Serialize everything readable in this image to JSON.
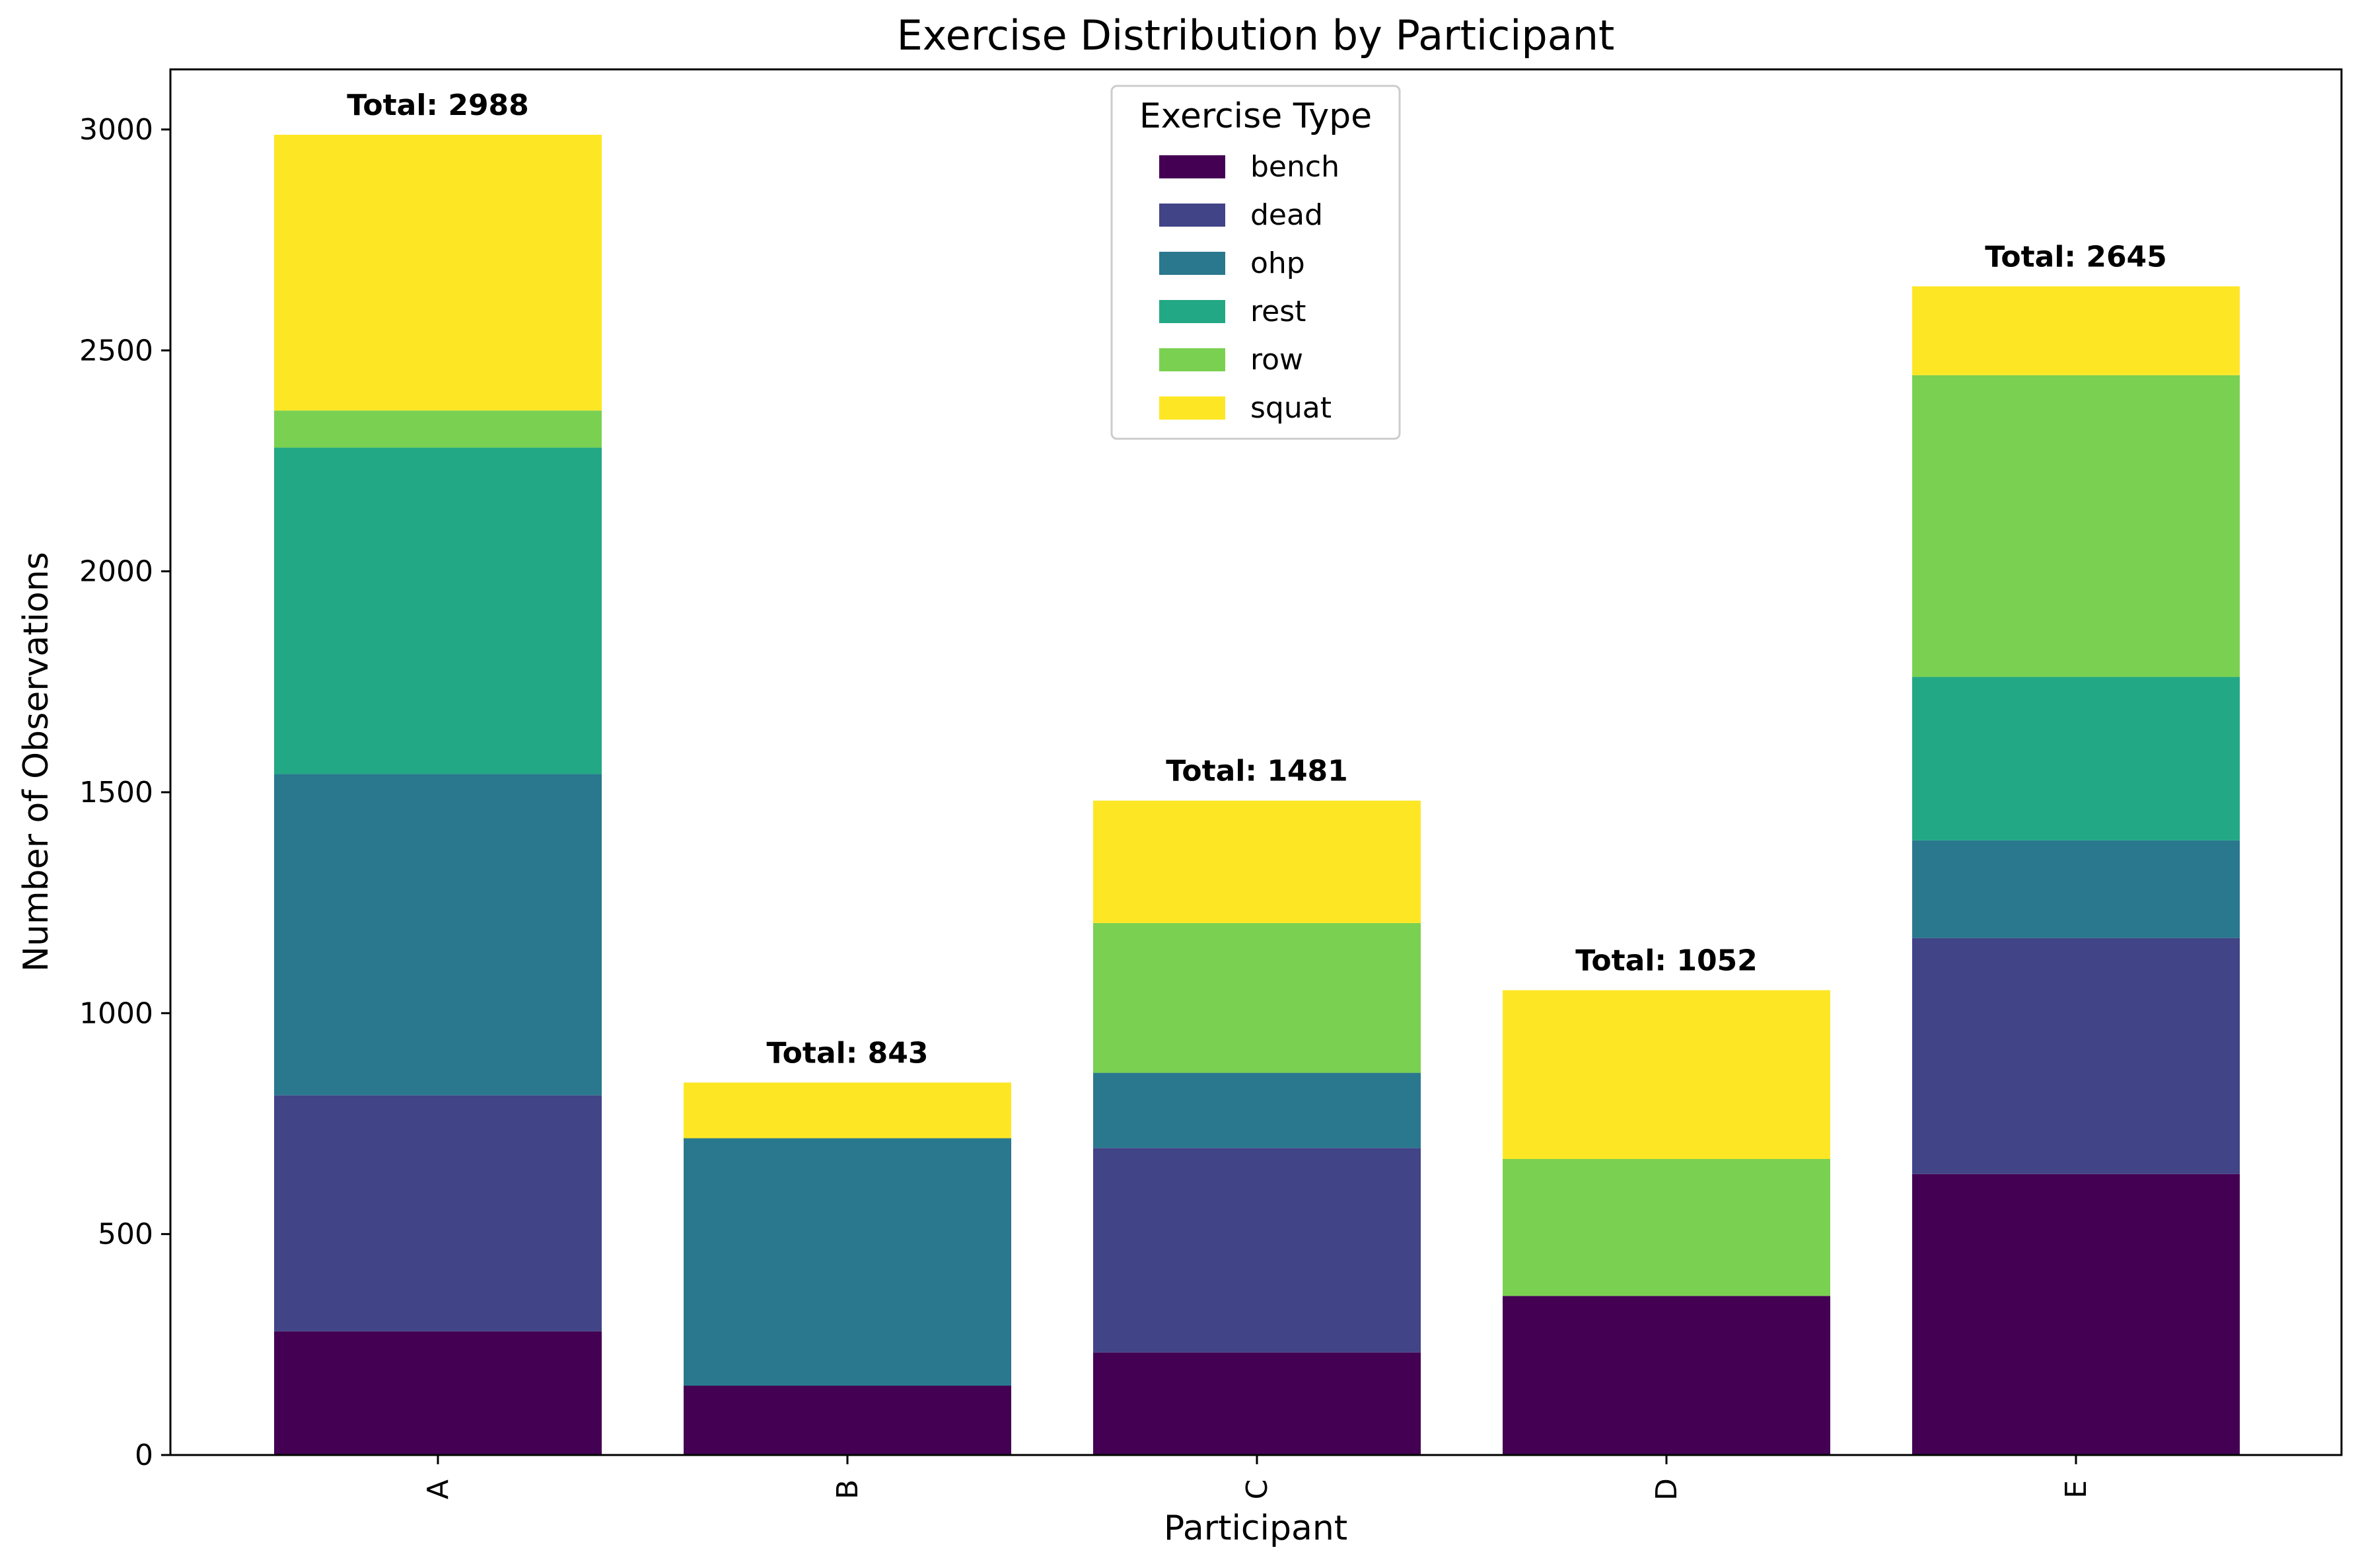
{
  "chart_data": {
    "type": "bar",
    "stacked": true,
    "title": "Exercise Distribution by Participant",
    "xlabel": "Participant",
    "ylabel": "Number of Observations",
    "categories": [
      "A",
      "B",
      "C",
      "D",
      "E"
    ],
    "ylim": [
      0,
      3136
    ],
    "yticks": [
      0,
      500,
      1000,
      1500,
      2000,
      2500,
      3000
    ],
    "grid": false,
    "legend": {
      "title": "Exercise Type",
      "placement": "top-center"
    },
    "series": [
      {
        "name": "bench",
        "color": "#440154",
        "values": [
          280,
          157,
          232,
          360,
          636
        ]
      },
      {
        "name": "dead",
        "color": "#414487",
        "values": [
          534,
          0,
          463,
          0,
          534
        ]
      },
      {
        "name": "ohp",
        "color": "#2a788e",
        "values": [
          727,
          560,
          170,
          0,
          221
        ]
      },
      {
        "name": "rest",
        "color": "#22a884",
        "values": [
          739,
          0,
          0,
          0,
          370
        ]
      },
      {
        "name": "row",
        "color": "#7ad151",
        "values": [
          84,
          0,
          339,
          310,
          683
        ]
      },
      {
        "name": "squat",
        "color": "#fde725",
        "values": [
          624,
          126,
          277,
          382,
          201
        ]
      }
    ],
    "totals": [
      2988,
      843,
      1481,
      1052,
      2645
    ],
    "total_labels": [
      "Total: 2988",
      "Total: 843",
      "Total: 1481",
      "Total: 1052",
      "Total: 2645"
    ]
  }
}
